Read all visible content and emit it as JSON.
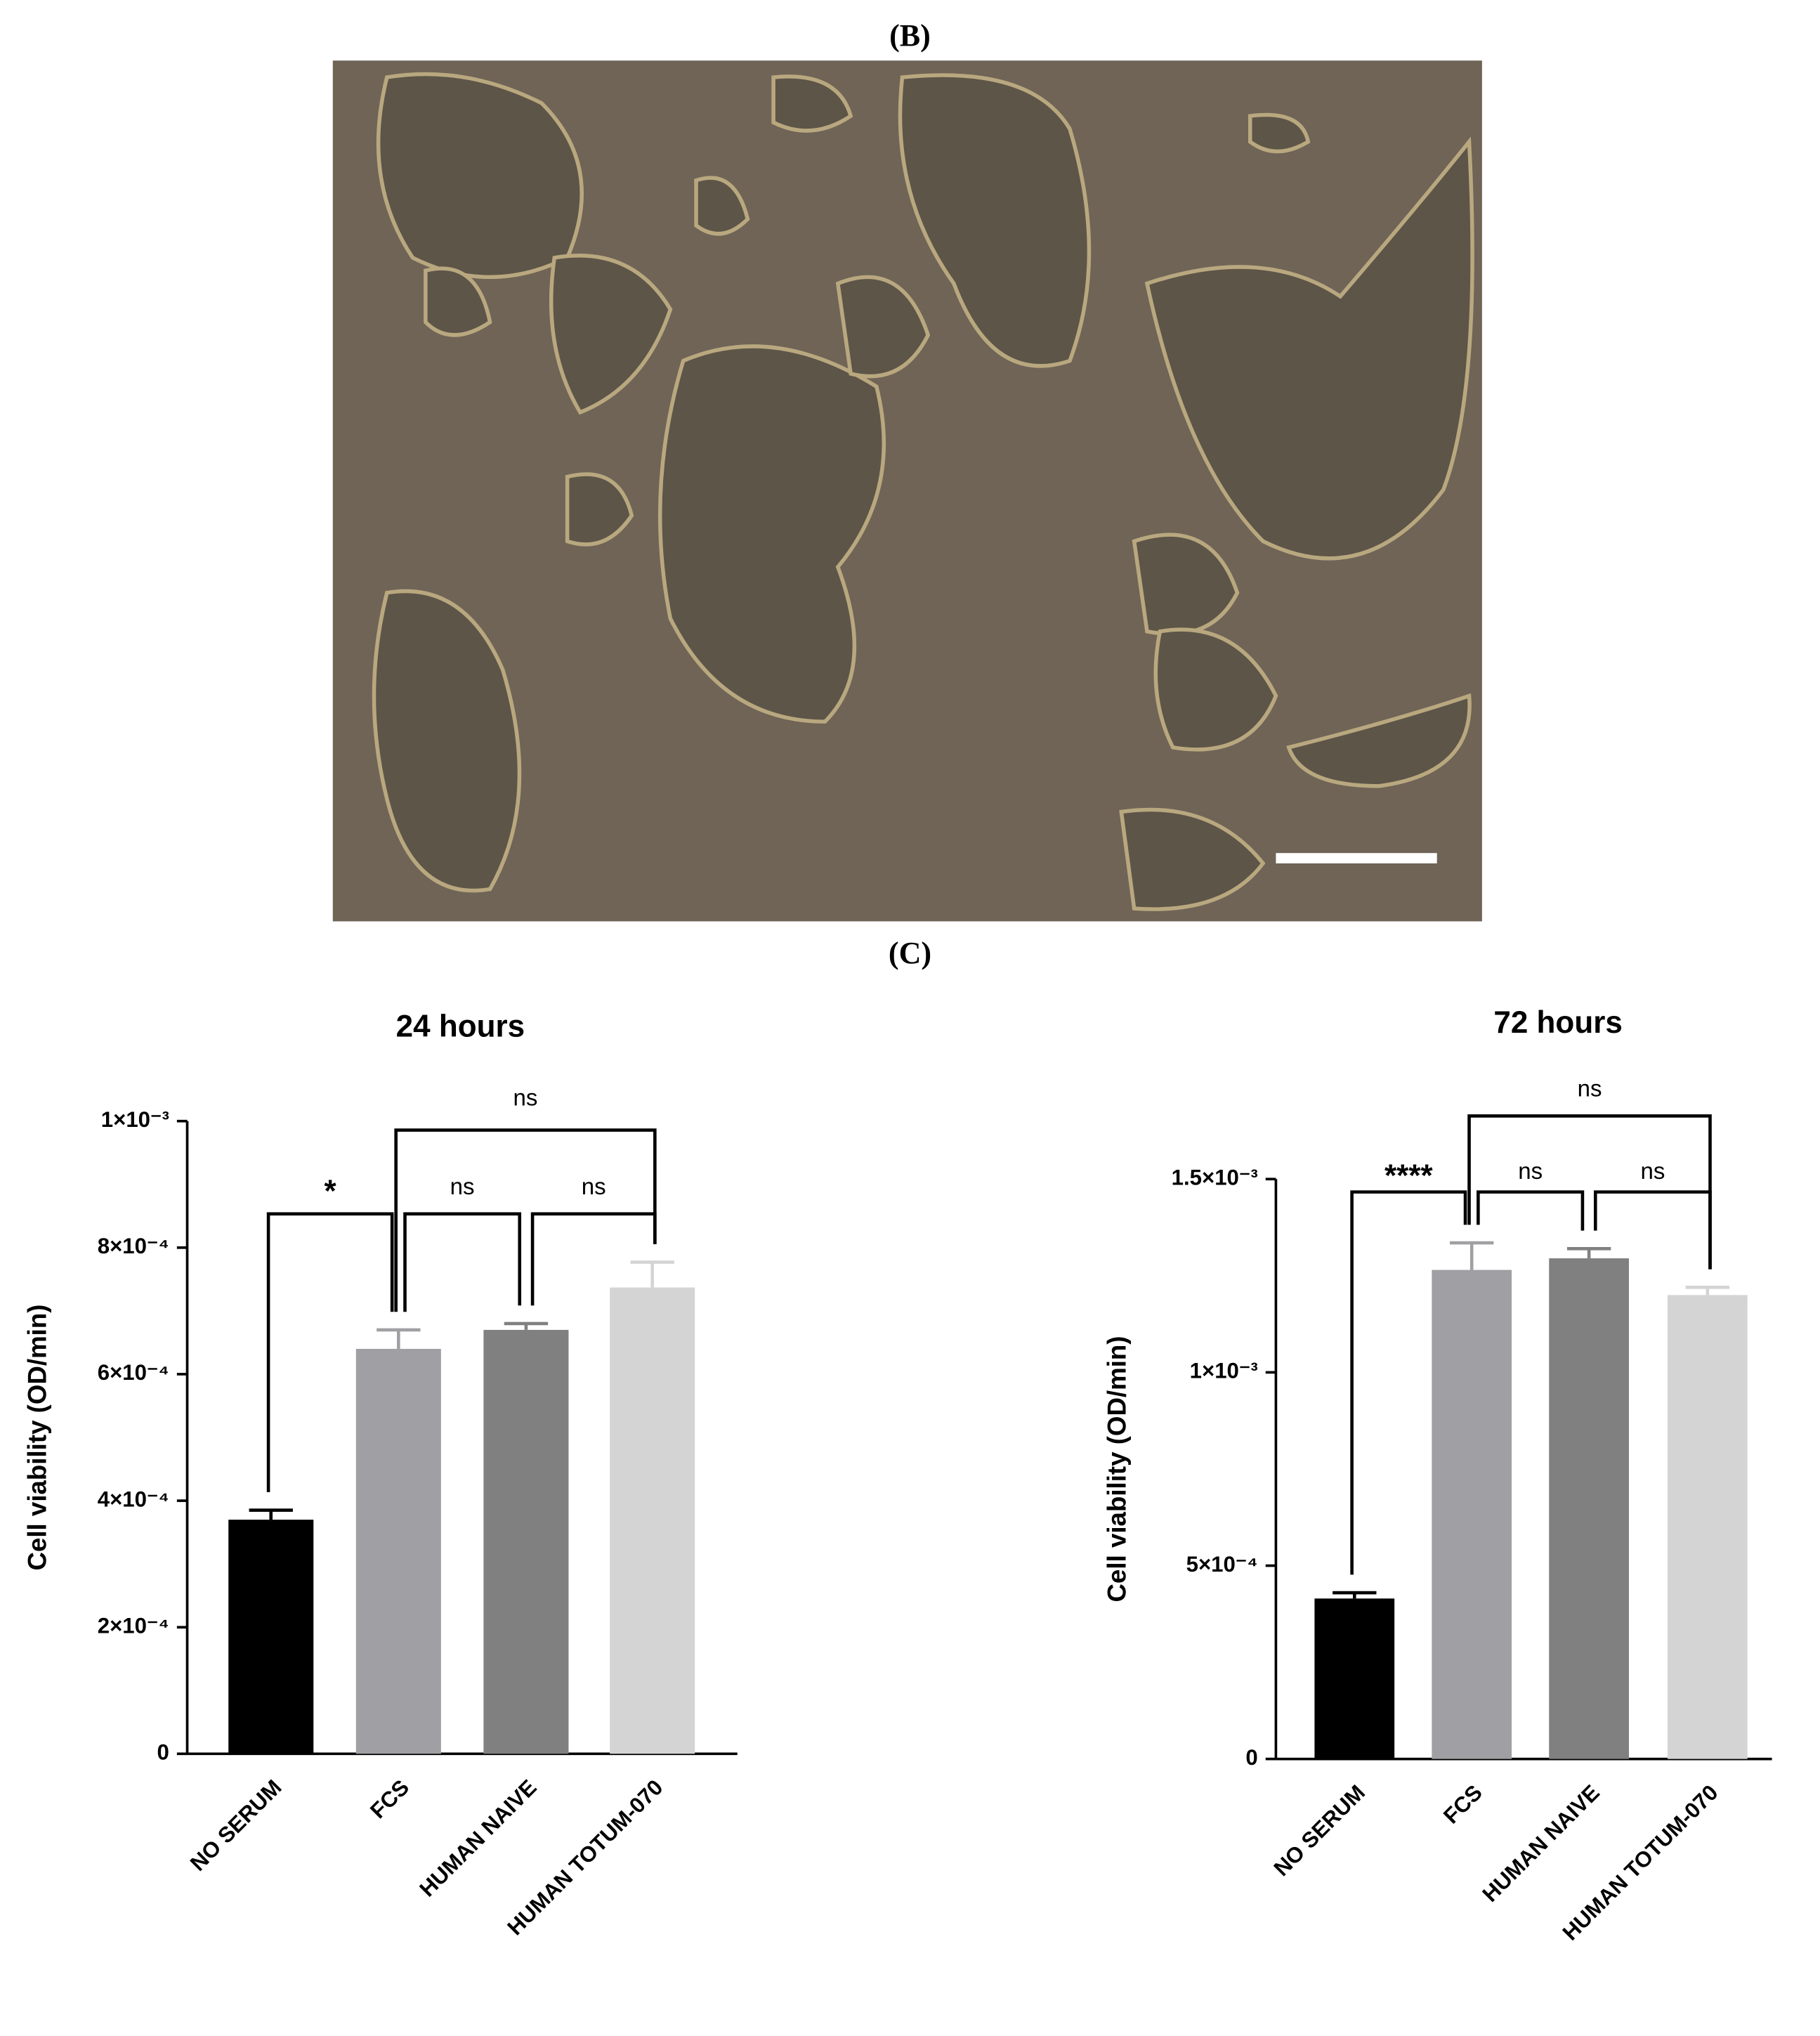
{
  "panel_b_label": "(B)",
  "panel_c_label": "(C)",
  "chart_data": [
    {
      "type": "bar",
      "title": "24 hours",
      "y_label": "Cell viability (OD/min)",
      "categories": [
        "NO SERUM",
        "FCS",
        "HUMAN NAIVE",
        "HUMAN TOTUM-070"
      ],
      "values": [
        0.00037,
        0.00064,
        0.00067,
        0.000737
      ],
      "errors": [
        1.5e-05,
        3e-05,
        1e-05,
        4e-05
      ],
      "colors": [
        "#000000",
        "#a0a0a4",
        "#808080",
        "#d4d4d4"
      ],
      "ylim": [
        0,
        0.001
      ],
      "yticks": [
        0,
        {
          "value": 0.0002,
          "label": "2×10⁻⁴"
        },
        {
          "value": 0.0004,
          "label": "4×10⁻⁴"
        },
        {
          "value": 0.0006,
          "label": "6×10⁻⁴"
        },
        {
          "value": 0.0008,
          "label": "8×10⁻⁴"
        },
        {
          "value": 0.001,
          "label": "1×10⁻³"
        }
      ],
      "annotations": [
        "*",
        "ns",
        "ns",
        "ns"
      ]
    },
    {
      "type": "bar",
      "title": "72 hours",
      "y_label": "Cell viability (OD/min)",
      "categories": [
        "NO SERUM",
        "FCS",
        "HUMAN NAIVE",
        "HUMAN TOTUM-070"
      ],
      "values": [
        0.000415,
        0.001265,
        0.001295,
        0.0012
      ],
      "errors": [
        1.5e-05,
        7e-05,
        2.5e-05,
        2e-05
      ],
      "colors": [
        "#000000",
        "#a0a0a4",
        "#808080",
        "#d4d4d4"
      ],
      "ylim": [
        0,
        0.0015
      ],
      "yticks": [
        0,
        {
          "value": 0.0005,
          "label": "5×10⁻⁴"
        },
        {
          "value": 0.001,
          "label": "1×10⁻³"
        },
        {
          "value": 0.0015,
          "label": "1.5×10⁻³"
        }
      ],
      "annotations": [
        "****",
        "ns",
        "ns",
        "ns"
      ]
    }
  ]
}
